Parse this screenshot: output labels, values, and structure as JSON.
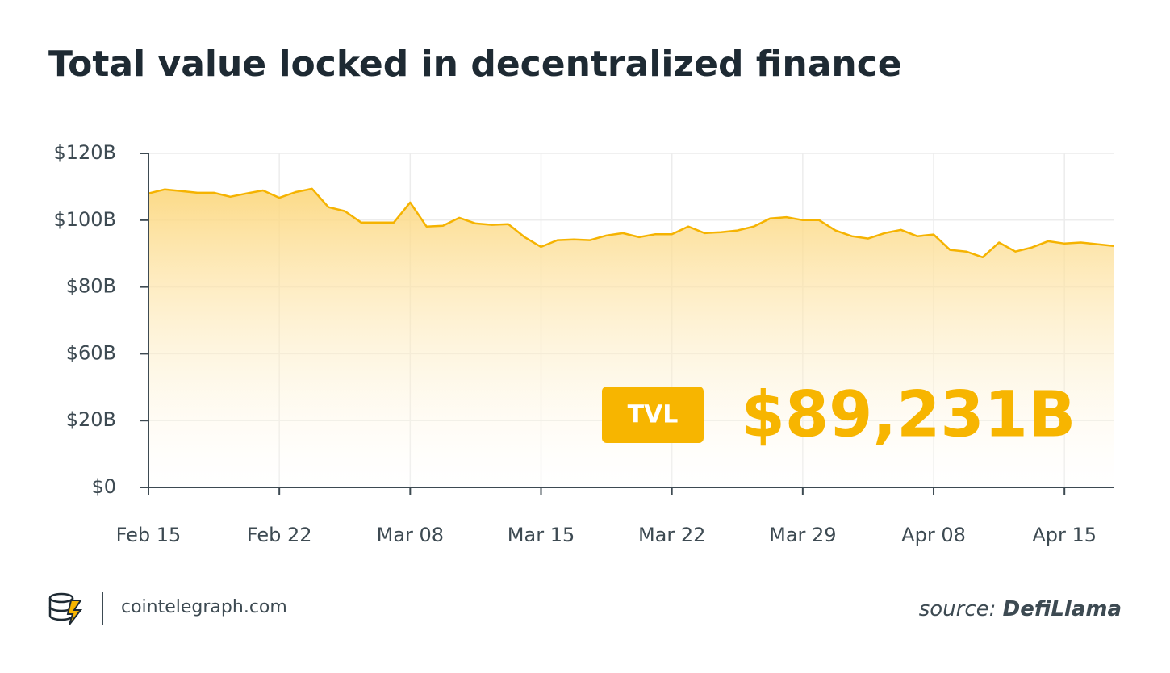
{
  "chart_data": {
    "type": "area",
    "title": "Total value locked in decentralized finance",
    "categories": [
      "Feb 15",
      null,
      null,
      null,
      null,
      null,
      null,
      null,
      "Feb 22",
      null,
      null,
      null,
      null,
      null,
      null,
      null,
      "Mar 08",
      null,
      null,
      null,
      null,
      null,
      null,
      null,
      "Mar 15",
      null,
      null,
      null,
      null,
      null,
      null,
      null,
      "Mar 22",
      null,
      null,
      null,
      null,
      null,
      null,
      null,
      "Mar 29",
      null,
      null,
      null,
      null,
      null,
      null,
      null,
      "Apr 08",
      null,
      null,
      null,
      null,
      null,
      null,
      null,
      "Apr 15",
      null,
      null,
      null
    ],
    "values": [
      108.0,
      109.2,
      108.7,
      108.2,
      108.2,
      107.0,
      108.0,
      108.9,
      106.7,
      108.4,
      109.4,
      103.9,
      102.7,
      99.3,
      99.3,
      99.3,
      105.3,
      98.1,
      98.3,
      100.7,
      99.0,
      98.6,
      98.8,
      94.9,
      92.0,
      94.0,
      94.2,
      94.0,
      95.4,
      96.1,
      94.9,
      95.8,
      95.8,
      98.1,
      96.1,
      96.4,
      96.9,
      98.1,
      100.5,
      100.9,
      100.0,
      100.0,
      96.9,
      95.2,
      94.5,
      96.1,
      97.1,
      95.2,
      95.7,
      91.1,
      90.6,
      88.9,
      93.3,
      90.6,
      91.8,
      93.7,
      93.0,
      93.3,
      92.8,
      92.3
    ],
    "color": "#f5b301",
    "fill_color": "#fcd67a",
    "ylim": [
      0,
      120
    ],
    "yticks": [
      {
        "value": 0,
        "label": "$0"
      },
      {
        "value": 20,
        "label": "$20B"
      },
      {
        "value": 60,
        "label": "$60B"
      },
      {
        "value": 80,
        "label": "$80B"
      },
      {
        "value": 100,
        "label": "$100B"
      },
      {
        "value": 120,
        "label": "$120B"
      }
    ],
    "grid": true,
    "annotations": {
      "badge": "TVL",
      "headline": "$89,231B"
    }
  },
  "footer": {
    "site": "cointelegraph.com",
    "source_prefix": "source:",
    "source_name": "DefiLlama"
  }
}
